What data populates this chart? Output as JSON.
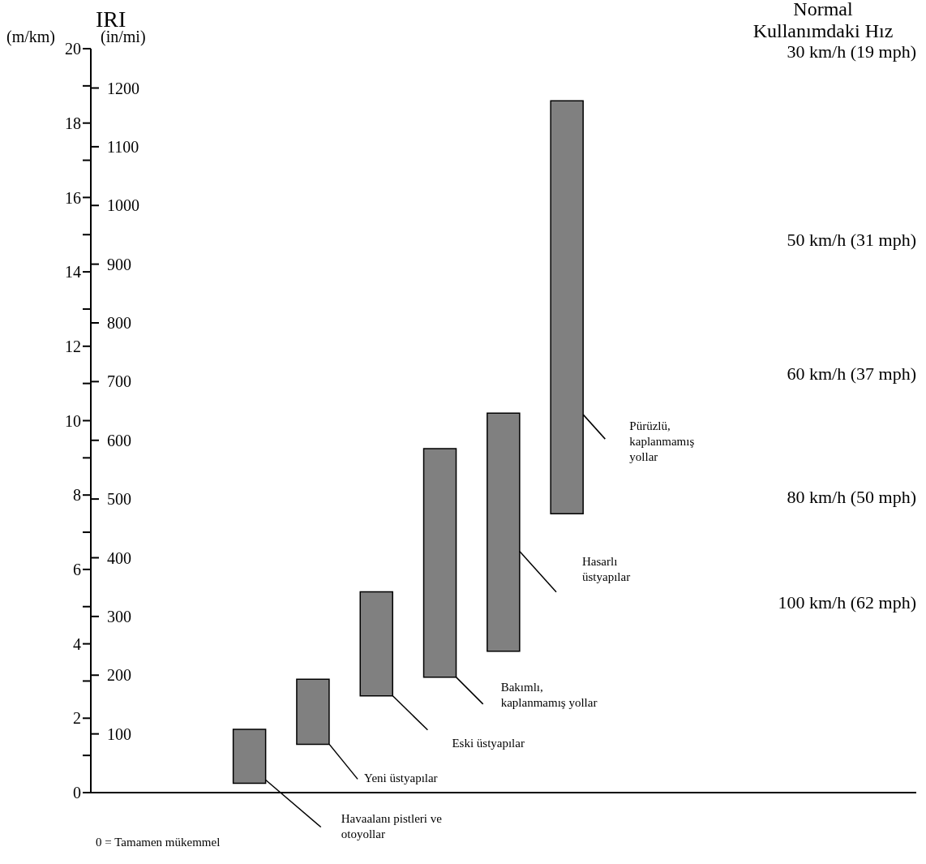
{
  "chart_data": {
    "type": "bar",
    "title": "IRI",
    "ylabel": "(m/km)",
    "y2label": "(in/mi)",
    "categories": [
      null,
      null,
      null,
      null,
      null,
      null,
      null,
      null,
      null,
      null,
      null,
      null,
      null
    ],
    "base": [
      null,
      null,
      0.25,
      1.3,
      2.6,
      3.1,
      3.8,
      7.5,
      null,
      null,
      null,
      null,
      null
    ],
    "values": [
      null,
      null,
      1.45,
      1.75,
      2.8,
      6.15,
      6.4,
      11.1,
      null,
      null,
      null,
      null,
      null
    ],
    "color": "#808080",
    "ylim": [
      0,
      20
    ],
    "yticks": [
      0,
      {
        "value": 1,
        "label": null
      },
      2,
      {
        "value": 3,
        "label": null
      },
      4,
      {
        "value": 5,
        "label": null
      },
      6,
      {
        "value": 7,
        "label": null
      },
      8,
      {
        "value": 9,
        "label": null
      },
      10,
      {
        "value": 11,
        "label": null
      },
      12,
      {
        "value": 13,
        "label": null
      },
      14,
      {
        "value": 15,
        "label": null
      },
      16,
      {
        "value": 17,
        "label": null
      },
      18,
      {
        "value": 19,
        "label": null
      },
      20
    ],
    "y2lim": [
      0,
      1267
    ],
    "y2ticks": [
      100,
      200,
      300,
      400,
      500,
      600,
      700,
      800,
      900,
      1000,
      1100,
      1200
    ],
    "annotations": [
      "Normal Kullanımdaki Hız",
      "30 km/h (19 mph)",
      "50 km/h (31 mph)",
      "60 km/h (37 mph)",
      "80 km/h (50 mph)",
      "100 km/h (62 mph)",
      "0 = Tamamen mükemmel",
      "Havaalanı pistleri ve otoyollar",
      "Yeni üstyapılar",
      "Eski üstyapılar",
      "Bakımlı, kaplanmamış yollar",
      "Hasarlı üstyapılar",
      "Pürüzlü, kaplanmamış yollar"
    ]
  }
}
